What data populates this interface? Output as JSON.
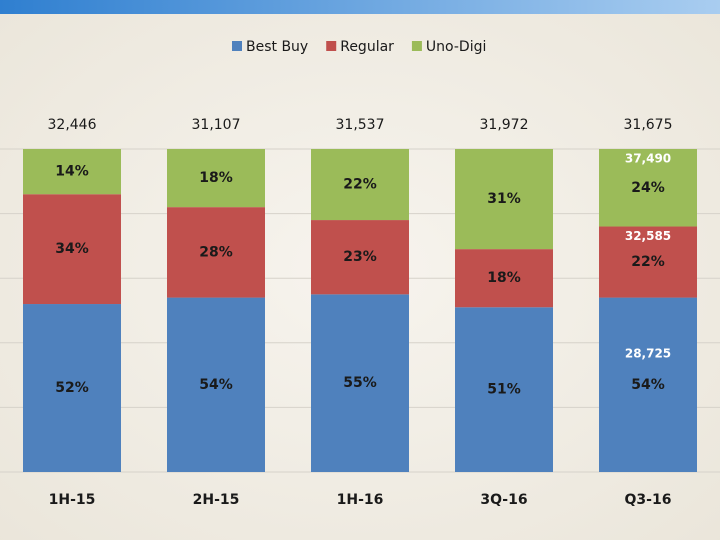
{
  "chart_data": {
    "type": "stacked_bar",
    "categories": [
      "1H-15",
      "2H-15",
      "1H-16",
      "3Q-16",
      "Q3-16"
    ],
    "series": [
      {
        "name": "Best Buy",
        "color": "#4f81bd",
        "values": [
          52,
          54,
          55,
          51,
          54
        ],
        "value_labels": [
          "52%",
          "54%",
          "55%",
          "51%",
          "54%"
        ]
      },
      {
        "name": "Regular",
        "color": "#c0504d",
        "values": [
          34,
          28,
          23,
          18,
          22
        ],
        "value_labels": [
          "34%",
          "28%",
          "23%",
          "18%",
          "22%"
        ]
      },
      {
        "name": "Uno-Digi",
        "color": "#9bbb59",
        "values": [
          14,
          18,
          22,
          31,
          24
        ],
        "value_labels": [
          "14%",
          "18%",
          "22%",
          "31%",
          "24%"
        ]
      }
    ],
    "totals": {
      "values": [
        32446,
        31107,
        31537,
        31972,
        31675
      ],
      "value_labels": [
        "32,446",
        "31,107",
        "31,537",
        "31,972",
        "31,675"
      ]
    },
    "annotations": [
      "28,725",
      "32,585",
      "37,490"
    ],
    "ylim": [
      0,
      100
    ],
    "yticks": [
      0,
      20,
      40,
      60,
      80,
      100
    ],
    "grid": true,
    "legend": "top"
  }
}
